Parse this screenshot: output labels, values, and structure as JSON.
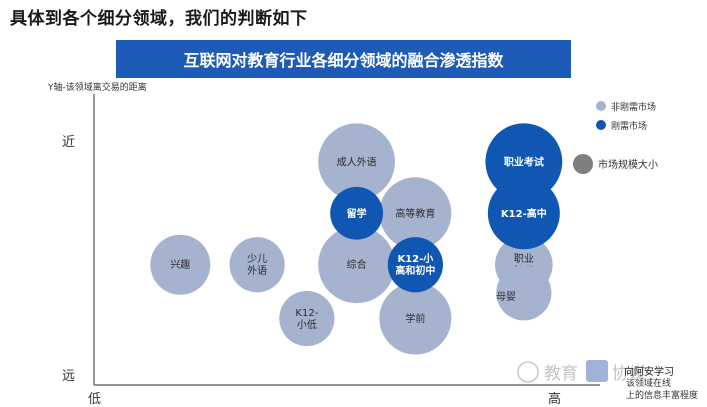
{
  "header": {
    "top_title": "具体到各个细分领域，我们的判断如下",
    "banner_title": "互联网对教育行业各细分领域的融合渗透指数"
  },
  "colors": {
    "banner": "#1e5bb8",
    "non_essential": "#a6b3cf",
    "essential": "#0f57b3",
    "size_legend": "#7f7f7f",
    "axis": "#555555"
  },
  "chart_data": {
    "type": "scatter",
    "title": "互联网对教育行业各细分领域的融合渗透指数",
    "ylabel": "Y轴-该领域离交易的距离",
    "xlabel": "该领域在线上的信息丰富程度",
    "y_tick_top": "近",
    "y_tick_bottom": "远",
    "x_tick_left": "低",
    "x_tick_right": "高",
    "legend": {
      "placement": "right",
      "items": [
        {
          "key": "non_essential",
          "label": "非刚需市场"
        },
        {
          "key": "essential",
          "label": "刚需市场"
        }
      ],
      "size_label": "市场规模大小"
    },
    "series": [
      {
        "name": "非刚需市场",
        "key": "non_essential",
        "points": [
          {
            "label": "成人外语",
            "x": 5.5,
            "y": 8.3,
            "size": 3.2
          },
          {
            "label": "高等教育",
            "x": 6.8,
            "y": 6.1,
            "size": 3.0
          },
          {
            "label": "兴趣",
            "x": 1.6,
            "y": 3.9,
            "size": 2.5
          },
          {
            "label": "少儿|外语",
            "x": 3.3,
            "y": 3.9,
            "size": 2.3
          },
          {
            "label": "综合",
            "x": 5.5,
            "y": 3.9,
            "size": 3.2
          },
          {
            "label": "职业|技能",
            "x": 9.2,
            "y": 3.9,
            "size": 2.4
          },
          {
            "label": "",
            "x": 9.2,
            "y": 2.7,
            "size": 2.3
          },
          {
            "label": "K12-|小低",
            "x": 4.4,
            "y": 1.6,
            "size": 2.3
          },
          {
            "label": "学前",
            "x": 6.8,
            "y": 1.6,
            "size": 3.0
          }
        ]
      },
      {
        "name": "刚需市场",
        "key": "essential",
        "points": [
          {
            "label": "职业考试",
            "x": 9.2,
            "y": 8.3,
            "size": 3.2
          },
          {
            "label": "K12-高中",
            "x": 9.2,
            "y": 6.1,
            "size": 3.0
          },
          {
            "label": "留学",
            "x": 5.5,
            "y": 6.1,
            "size": 2.2
          },
          {
            "label": "K12-小|高和初中",
            "x": 6.8,
            "y": 3.9,
            "size": 2.3
          }
        ]
      }
    ],
    "annotations": [
      {
        "label": "母婴",
        "near": "职业技能"
      }
    ]
  },
  "watermark": {
    "brand_left": "教育",
    "brand_right": "协媒",
    "caption": "向阿安学习"
  }
}
